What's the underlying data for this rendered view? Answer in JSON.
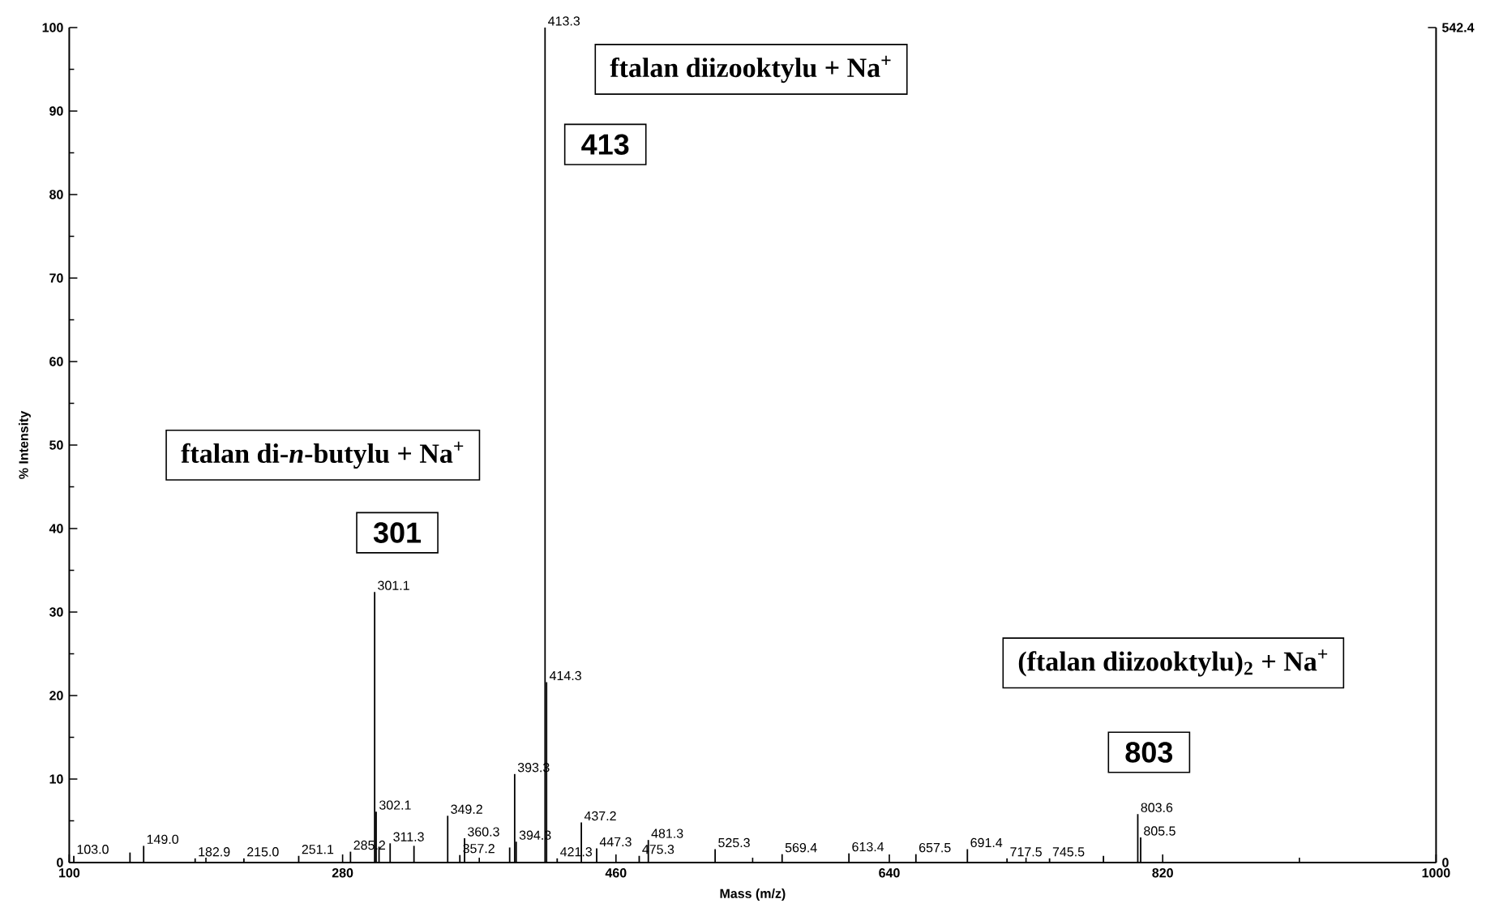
{
  "chart_data": {
    "type": "bar",
    "xlabel": "Mass (m/z)",
    "ylabel": "% Intensity",
    "x": [
      103.0,
      140.0,
      149.0,
      182.9,
      215.0,
      251.1,
      285.2,
      301.1,
      302.1,
      304.0,
      311.3,
      327.0,
      349.2,
      357.2,
      360.3,
      390.0,
      393.3,
      394.3,
      413.3,
      414.3,
      421.3,
      437.2,
      447.3,
      475.3,
      481.3,
      525.3,
      569.4,
      613.4,
      657.5,
      691.4,
      717.5,
      745.5,
      781.0,
      803.6,
      805.5
    ],
    "values": [
      0.8,
      1.2,
      2.0,
      0.5,
      0.5,
      0.8,
      1.3,
      32.4,
      6.1,
      1.9,
      2.3,
      2.0,
      5.6,
      0.9,
      2.9,
      1.8,
      10.6,
      2.5,
      100,
      21.6,
      0.5,
      4.8,
      1.7,
      0.8,
      2.7,
      1.6,
      1.0,
      1.1,
      1.0,
      1.6,
      0.5,
      0.5,
      0.8,
      5.8,
      3.0
    ],
    "color": "#000000",
    "xlim": [
      100,
      1000
    ],
    "xticks": [
      100,
      280,
      460,
      640,
      820,
      1000
    ],
    "ylim": [
      0,
      100
    ],
    "yticks": [
      0,
      10,
      20,
      30,
      40,
      50,
      60,
      70,
      80,
      90,
      100
    ],
    "y2lim": [
      0,
      542.4
    ],
    "y2ticks": [
      0,
      542.4
    ],
    "annotations": [
      "ftalan di-*n*-butylu + Na$^{+}$",
      "301",
      "ftalan diizooktylu + Na$^{+}$",
      "413",
      "(ftalan diizooktylu)$_{2}$ + Na$^{+}$",
      "803",
      {
        "text": "103.0",
        "x": 103.0,
        "y": 0.8
      },
      {
        "text": "149.0",
        "x": 149.0,
        "y": 2.0
      },
      {
        "text": "182.9",
        "x": 182.9,
        "y": 0.5
      },
      {
        "text": "215.0",
        "x": 215.0,
        "y": 0.5
      },
      {
        "text": "251.1",
        "x": 251.1,
        "y": 0.8
      },
      {
        "text": "285.2",
        "x": 285.2,
        "y": 1.3
      },
      {
        "text": "301.1",
        "x": 301.1,
        "y": 32.4
      },
      {
        "text": "302.1",
        "x": 302.1,
        "y": 6.1
      },
      {
        "text": "311.3",
        "x": 311.3,
        "y": 2.3
      },
      {
        "text": "349.2",
        "x": 349.2,
        "y": 5.6
      },
      {
        "text": "357.2",
        "x": 357.2,
        "y": 0.9
      },
      {
        "text": "360.3",
        "x": 360.3,
        "y": 2.9
      },
      {
        "text": "393.3",
        "x": 393.3,
        "y": 10.6
      },
      {
        "text": "394.3",
        "x": 394.3,
        "y": 2.5
      },
      {
        "text": "413.3",
        "x": 413.3,
        "y": 100
      },
      {
        "text": "414.3",
        "x": 414.3,
        "y": 21.6
      },
      {
        "text": "421.3",
        "x": 421.3,
        "y": 0.5
      },
      {
        "text": "437.2",
        "x": 437.2,
        "y": 4.8
      },
      {
        "text": "447.3",
        "x": 447.3,
        "y": 1.7
      },
      {
        "text": "475.3",
        "x": 475.3,
        "y": 0.8
      },
      {
        "text": "481.3",
        "x": 481.3,
        "y": 2.7
      },
      {
        "text": "525.3",
        "x": 525.3,
        "y": 1.6
      },
      {
        "text": "569.4",
        "x": 569.4,
        "y": 1.0
      },
      {
        "text": "613.4",
        "x": 613.4,
        "y": 1.1
      },
      {
        "text": "657.5",
        "x": 657.5,
        "y": 1.0
      },
      {
        "text": "691.4",
        "x": 691.4,
        "y": 1.6
      },
      {
        "text": "717.5",
        "x": 717.5,
        "y": 0.5
      },
      {
        "text": "745.5",
        "x": 745.5,
        "y": 0.5
      },
      {
        "text": "803.6",
        "x": 803.6,
        "y": 5.8
      },
      {
        "text": "805.5",
        "x": 805.5,
        "y": 3.0
      }
    ],
    "grid": false
  }
}
